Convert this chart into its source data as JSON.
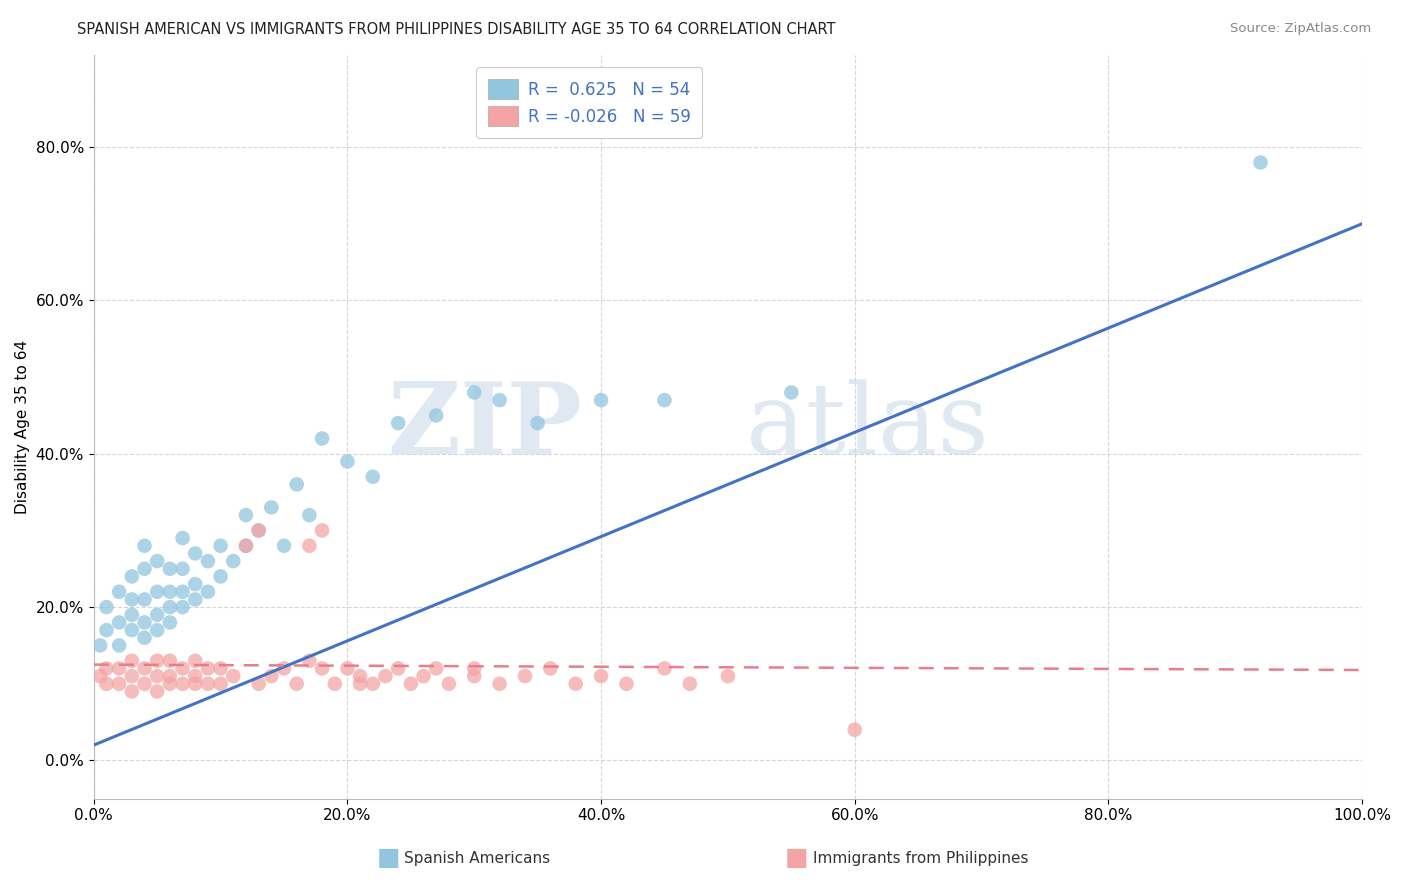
{
  "title": "SPANISH AMERICAN VS IMMIGRANTS FROM PHILIPPINES DISABILITY AGE 35 TO 64 CORRELATION CHART",
  "source": "Source: ZipAtlas.com",
  "ylabel": "Disability Age 35 to 64",
  "xlim": [
    0.0,
    1.0
  ],
  "ylim": [
    -0.05,
    0.92
  ],
  "xticks": [
    0.0,
    0.2,
    0.4,
    0.6,
    0.8,
    1.0
  ],
  "xticklabels": [
    "0.0%",
    "20.0%",
    "40.0%",
    "60.0%",
    "80.0%",
    "100.0%"
  ],
  "yticks": [
    0.0,
    0.2,
    0.4,
    0.6,
    0.8
  ],
  "yticklabels": [
    "0.0%",
    "20.0%",
    "40.0%",
    "60.0%",
    "80.0%"
  ],
  "blue_color": "#92C5DE",
  "pink_color": "#F4A4A4",
  "blue_line_color": "#4472C4",
  "pink_line_color": "#E87E8A",
  "watermark_zip": "ZIP",
  "watermark_atlas": "atlas",
  "blue_scatter_x": [
    0.005,
    0.01,
    0.01,
    0.02,
    0.02,
    0.02,
    0.03,
    0.03,
    0.03,
    0.03,
    0.04,
    0.04,
    0.04,
    0.04,
    0.04,
    0.05,
    0.05,
    0.05,
    0.05,
    0.06,
    0.06,
    0.06,
    0.06,
    0.07,
    0.07,
    0.07,
    0.07,
    0.08,
    0.08,
    0.08,
    0.09,
    0.09,
    0.1,
    0.1,
    0.11,
    0.12,
    0.12,
    0.13,
    0.14,
    0.15,
    0.16,
    0.17,
    0.18,
    0.2,
    0.22,
    0.24,
    0.27,
    0.3,
    0.32,
    0.35,
    0.4,
    0.45,
    0.55,
    0.92
  ],
  "blue_scatter_y": [
    0.15,
    0.17,
    0.2,
    0.15,
    0.18,
    0.22,
    0.17,
    0.19,
    0.21,
    0.24,
    0.16,
    0.18,
    0.21,
    0.25,
    0.28,
    0.17,
    0.19,
    0.22,
    0.26,
    0.18,
    0.2,
    0.22,
    0.25,
    0.2,
    0.22,
    0.25,
    0.29,
    0.21,
    0.23,
    0.27,
    0.22,
    0.26,
    0.24,
    0.28,
    0.26,
    0.28,
    0.32,
    0.3,
    0.33,
    0.28,
    0.36,
    0.32,
    0.42,
    0.39,
    0.37,
    0.44,
    0.45,
    0.48,
    0.47,
    0.44,
    0.47,
    0.47,
    0.48,
    0.78
  ],
  "pink_scatter_x": [
    0.005,
    0.01,
    0.01,
    0.02,
    0.02,
    0.03,
    0.03,
    0.03,
    0.04,
    0.04,
    0.05,
    0.05,
    0.05,
    0.06,
    0.06,
    0.06,
    0.07,
    0.07,
    0.08,
    0.08,
    0.08,
    0.09,
    0.09,
    0.1,
    0.1,
    0.11,
    0.12,
    0.13,
    0.13,
    0.14,
    0.15,
    0.16,
    0.17,
    0.17,
    0.18,
    0.18,
    0.19,
    0.2,
    0.21,
    0.21,
    0.22,
    0.23,
    0.24,
    0.25,
    0.26,
    0.27,
    0.28,
    0.3,
    0.3,
    0.32,
    0.34,
    0.36,
    0.38,
    0.4,
    0.42,
    0.45,
    0.47,
    0.5,
    0.6
  ],
  "pink_scatter_y": [
    0.11,
    0.1,
    0.12,
    0.1,
    0.12,
    0.09,
    0.11,
    0.13,
    0.1,
    0.12,
    0.09,
    0.11,
    0.13,
    0.1,
    0.11,
    0.13,
    0.1,
    0.12,
    0.1,
    0.11,
    0.13,
    0.1,
    0.12,
    0.1,
    0.12,
    0.11,
    0.28,
    0.3,
    0.1,
    0.11,
    0.12,
    0.1,
    0.13,
    0.28,
    0.3,
    0.12,
    0.1,
    0.12,
    0.1,
    0.11,
    0.1,
    0.11,
    0.12,
    0.1,
    0.11,
    0.12,
    0.1,
    0.11,
    0.12,
    0.1,
    0.11,
    0.12,
    0.1,
    0.11,
    0.1,
    0.12,
    0.1,
    0.11,
    0.04
  ],
  "blue_line_x0": 0.0,
  "blue_line_y0": 0.02,
  "blue_line_x1": 1.0,
  "blue_line_y1": 0.7,
  "pink_line_x0": 0.0,
  "pink_line_y0": 0.125,
  "pink_line_x1": 1.0,
  "pink_line_y1": 0.118,
  "title_fontsize": 10.5,
  "axis_label_fontsize": 11,
  "tick_fontsize": 11,
  "legend_fontsize": 12,
  "source_fontsize": 9.5
}
